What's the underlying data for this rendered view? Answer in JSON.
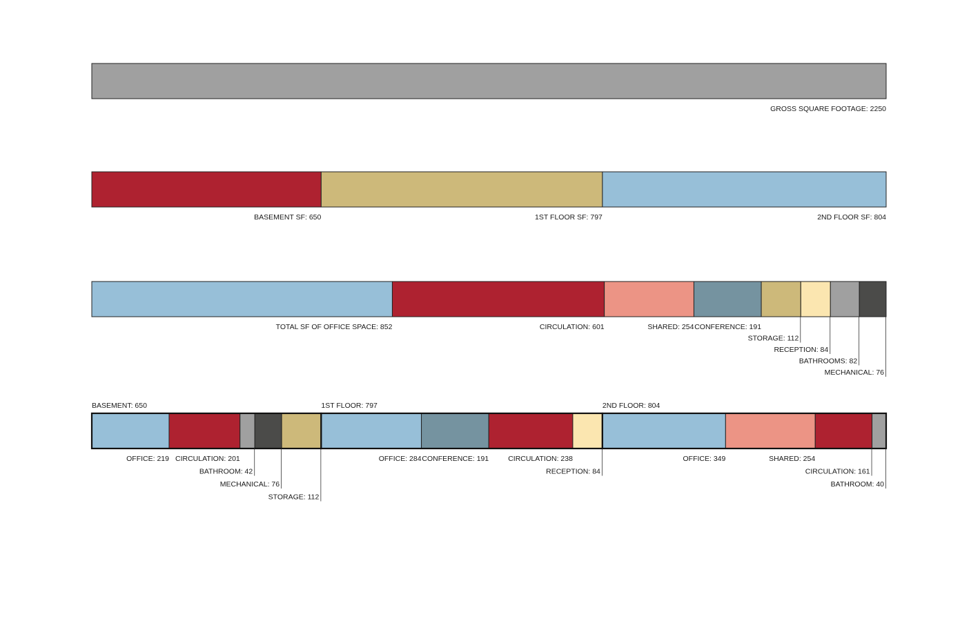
{
  "chart_data": [
    {
      "type": "bar",
      "orientation": "stacked-horizontal",
      "segments": [
        {
          "label": "GROSS SQUARE FOOTAGE:  2250",
          "value": 2250,
          "color": "#a0a0a0"
        }
      ]
    },
    {
      "type": "bar",
      "orientation": "stacked-horizontal",
      "segments": [
        {
          "label": "BASEMENT SF:  650",
          "value": 650,
          "color": "#ae2230"
        },
        {
          "label": "1ST FLOOR SF:  797",
          "value": 797,
          "color": "#cdb97a"
        },
        {
          "label": "2ND FLOOR SF:  804",
          "value": 804,
          "color": "#97bfd8"
        }
      ]
    },
    {
      "type": "bar",
      "orientation": "stacked-horizontal",
      "segments": [
        {
          "label": "TOTAL SF OF OFFICE SPACE:  852",
          "value": 852,
          "color": "#97bfd8"
        },
        {
          "label": "CIRCULATION:  601",
          "value": 601,
          "color": "#ae2230"
        },
        {
          "label": "SHARED:  254",
          "value": 254,
          "color": "#ec9485"
        },
        {
          "label": "CONFERENCE:  191",
          "value": 191,
          "color": "#7593a0"
        },
        {
          "label": "STORAGE:  112",
          "value": 112,
          "color": "#cdb97a"
        },
        {
          "label": "RECEPTION:  84",
          "value": 84,
          "color": "#fbe6b0"
        },
        {
          "label": "BATHROOMS:  82",
          "value": 82,
          "color": "#a0a0a0"
        },
        {
          "label": "MECHANICAL:  76",
          "value": 76,
          "color": "#4b4b49"
        }
      ]
    },
    {
      "type": "bar",
      "orientation": "stacked-horizontal",
      "groups": [
        {
          "label": "BASEMENT:  650",
          "segments": [
            {
              "label": "OFFICE:  219",
              "value": 219,
              "color": "#97bfd8"
            },
            {
              "label": "CIRCULATION:  201",
              "value": 201,
              "color": "#ae2230"
            },
            {
              "label": "BATHROOM:  42",
              "value": 42,
              "color": "#a0a0a0"
            },
            {
              "label": "MECHANICAL:  76",
              "value": 76,
              "color": "#4b4b49"
            },
            {
              "label": "STORAGE:  112",
              "value": 112,
              "color": "#cdb97a"
            }
          ]
        },
        {
          "label": "1ST FLOOR:  797",
          "segments": [
            {
              "label": "OFFICE:  284",
              "value": 284,
              "color": "#97bfd8"
            },
            {
              "label": "CONFERENCE:  191",
              "value": 191,
              "color": "#7593a0"
            },
            {
              "label": "CIRCULATION:  238",
              "value": 238,
              "color": "#ae2230"
            },
            {
              "label": "RECEPTION:  84",
              "value": 84,
              "color": "#fbe6b0"
            }
          ]
        },
        {
          "label": "2ND FLOOR:  804",
          "segments": [
            {
              "label": "OFFICE:  349",
              "value": 349,
              "color": "#97bfd8"
            },
            {
              "label": "SHARED:  254",
              "value": 254,
              "color": "#ec9485"
            },
            {
              "label": "CIRCULATION:  161",
              "value": 161,
              "color": "#ae2230"
            },
            {
              "label": "BATHROOM:  40",
              "value": 40,
              "color": "#a0a0a0"
            }
          ]
        }
      ]
    }
  ]
}
